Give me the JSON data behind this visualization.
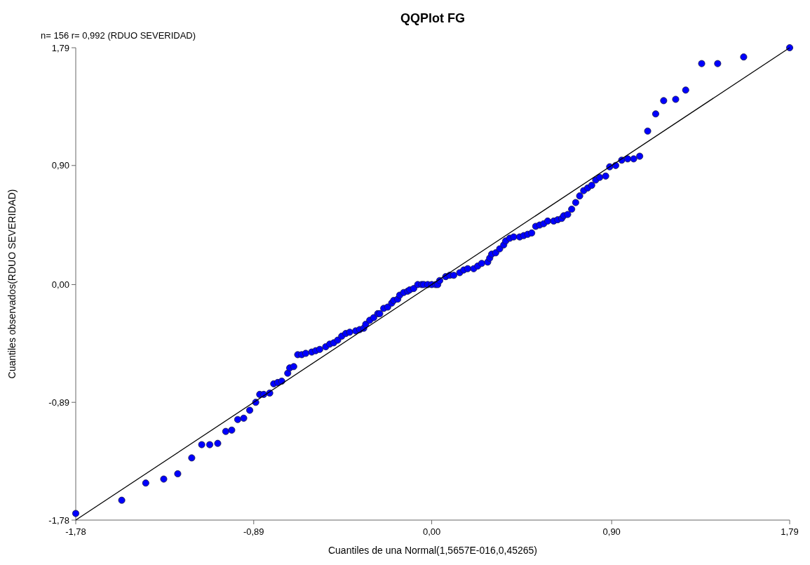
{
  "chart_data": {
    "type": "scatter",
    "title": "QQPlot FG",
    "xlabel": "Cuantiles de una Normal(1,5657E-016,0,45265)",
    "ylabel": "Cuantiles observados(RDUO SEVERIDAD)",
    "annotations": [
      "n= 156 r= 0,992 (RDUO SEVERIDAD)"
    ],
    "xlim": [
      -1.78,
      1.79
    ],
    "ylim": [
      -1.78,
      1.79
    ],
    "xticks": [
      {
        "value": -1.78,
        "label": "-1,78"
      },
      {
        "value": -0.89,
        "label": "-0,89"
      },
      {
        "value": 0,
        "label": "0,00"
      },
      {
        "value": 0.9,
        "label": "0,90"
      },
      {
        "value": 1.79,
        "label": "1,79"
      }
    ],
    "yticks": [
      {
        "value": -1.78,
        "label": "-1,78"
      },
      {
        "value": -0.89,
        "label": "-0,89"
      },
      {
        "value": 0,
        "label": "0,00"
      },
      {
        "value": 0.9,
        "label": "0,90"
      },
      {
        "value": 1.79,
        "label": "1,79"
      }
    ],
    "grid": false,
    "series": [
      {
        "color": "#0000ff",
        "marker": "circle",
        "x": [
          -1.78,
          -1.55,
          -1.43,
          -1.34,
          -1.27,
          -1.2,
          -1.15,
          -1.11,
          -1.07,
          -1.03,
          -1.0,
          -0.97,
          -0.94,
          -0.91,
          -0.88,
          -0.86,
          -0.84,
          -0.81,
          -0.79,
          -0.77,
          -0.75,
          -0.72,
          -0.71,
          -0.69,
          -0.67,
          -0.65,
          -0.63,
          -0.6,
          -0.58,
          -0.56,
          -0.53,
          -0.51,
          -0.49,
          -0.47,
          -0.45,
          -0.43,
          -0.41,
          -0.38,
          -0.36,
          -0.34,
          -0.33,
          -0.31,
          -0.29,
          -0.27,
          -0.26,
          -0.24,
          -0.22,
          -0.2,
          -0.19,
          -0.17,
          -0.16,
          -0.14,
          -0.12,
          -0.11,
          -0.09,
          -0.07,
          -0.05,
          -0.04,
          -0.02,
          0.0,
          0.02,
          0.03,
          0.04,
          0.07,
          0.09,
          0.11,
          0.14,
          0.16,
          0.18,
          0.21,
          0.23,
          0.25,
          0.28,
          0.29,
          0.3,
          0.32,
          0.34,
          0.36,
          0.37,
          0.39,
          0.41,
          0.44,
          0.46,
          0.48,
          0.5,
          0.52,
          0.54,
          0.56,
          0.58,
          0.61,
          0.63,
          0.65,
          0.66,
          0.68,
          0.7,
          0.72,
          0.74,
          0.76,
          0.78,
          0.8,
          0.82,
          0.84,
          0.87,
          0.89,
          0.92,
          0.95,
          0.98,
          1.01,
          1.04,
          1.08,
          1.12,
          1.16,
          1.22,
          1.27,
          1.35,
          1.43,
          1.56,
          1.79
        ],
        "values": [
          -1.73,
          -1.63,
          -1.5,
          -1.47,
          -1.43,
          -1.31,
          -1.21,
          -1.21,
          -1.2,
          -1.11,
          -1.1,
          -1.02,
          -1.01,
          -0.95,
          -0.89,
          -0.83,
          -0.83,
          -0.82,
          -0.75,
          -0.74,
          -0.73,
          -0.67,
          -0.63,
          -0.62,
          -0.53,
          -0.53,
          -0.52,
          -0.51,
          -0.5,
          -0.49,
          -0.47,
          -0.45,
          -0.44,
          -0.42,
          -0.39,
          -0.37,
          -0.36,
          -0.35,
          -0.34,
          -0.33,
          -0.3,
          -0.27,
          -0.25,
          -0.22,
          -0.22,
          -0.18,
          -0.17,
          -0.14,
          -0.12,
          -0.11,
          -0.08,
          -0.06,
          -0.05,
          -0.04,
          -0.03,
          0.0,
          0.0,
          0.0,
          0.0,
          0.0,
          0.0,
          0.0,
          0.03,
          0.06,
          0.07,
          0.07,
          0.09,
          0.11,
          0.12,
          0.12,
          0.14,
          0.16,
          0.17,
          0.2,
          0.23,
          0.24,
          0.27,
          0.3,
          0.33,
          0.35,
          0.36,
          0.36,
          0.37,
          0.38,
          0.39,
          0.44,
          0.45,
          0.46,
          0.48,
          0.48,
          0.49,
          0.5,
          0.52,
          0.53,
          0.57,
          0.62,
          0.67,
          0.71,
          0.73,
          0.75,
          0.79,
          0.81,
          0.82,
          0.89,
          0.9,
          0.94,
          0.95,
          0.95,
          0.97,
          1.16,
          1.29,
          1.39,
          1.4,
          1.47,
          1.67,
          1.67,
          1.72,
          1.79
        ]
      },
      {
        "type": "line",
        "color": "#000000",
        "x": [
          -1.78,
          1.79
        ],
        "values": [
          -1.78,
          1.79
        ]
      }
    ]
  }
}
